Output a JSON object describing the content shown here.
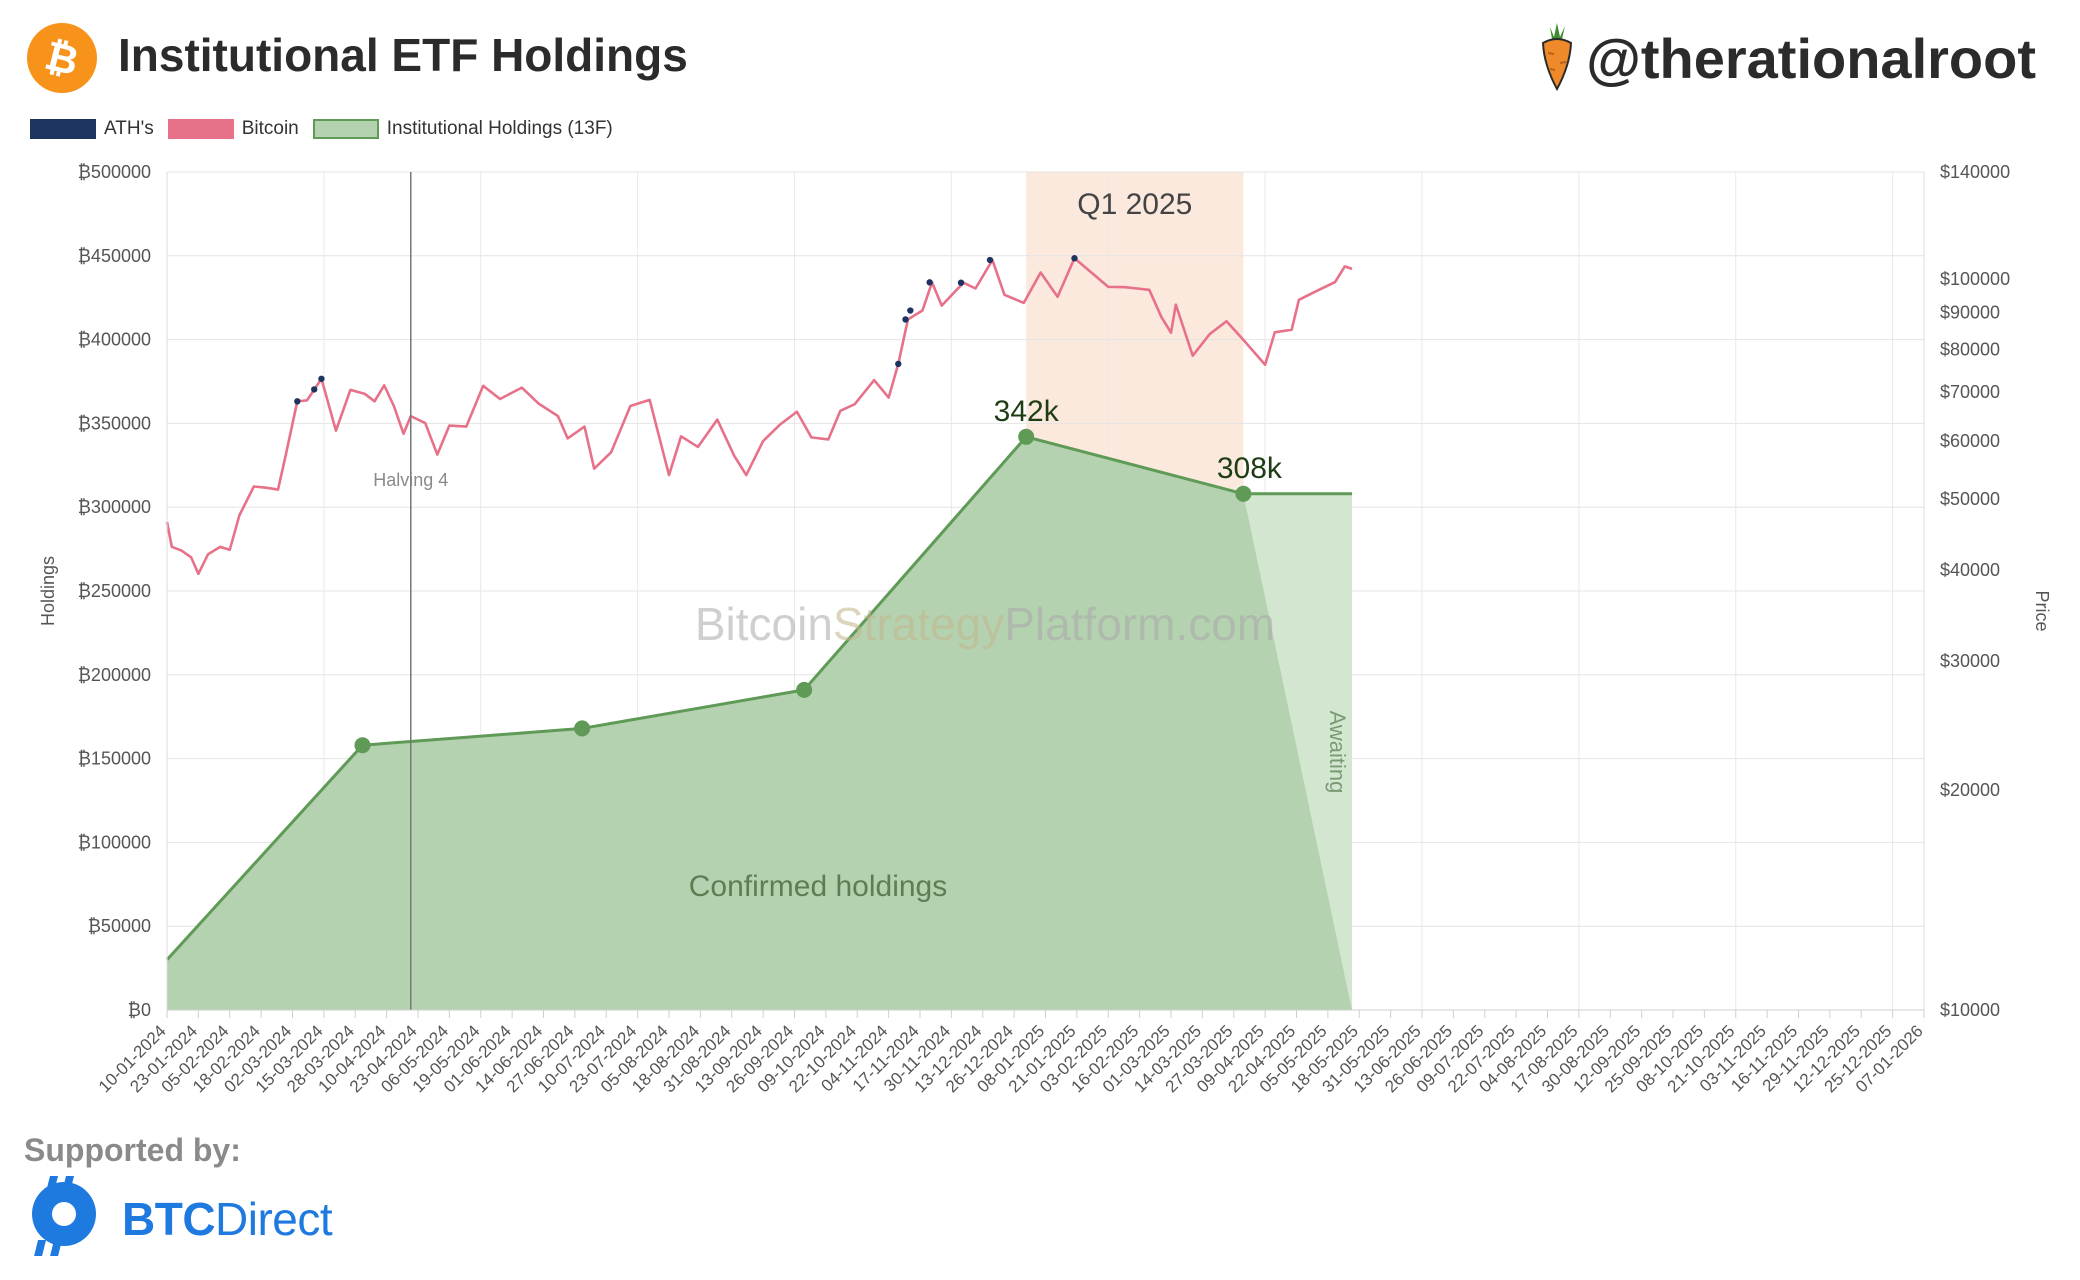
{
  "header": {
    "title": "Institutional ETF Holdings",
    "handle": "@therationalroot",
    "btc_logo_icon": "bitcoin-icon",
    "carrot_icon": "carrot-icon"
  },
  "footer": {
    "supported_label": "Supported by:",
    "sponsor_bold": "BTC",
    "sponsor_rest": "Direct",
    "sponsor_icon": "btcdirect-logo-icon"
  },
  "colors": {
    "ath": "#1d3461",
    "bitcoin": "#e8718a",
    "holdings_fill": "#b5d2b0",
    "holdings_line": "#5f9a57",
    "awaiting_fill": "#d3e6d0",
    "q1_band": "#fbe9dd",
    "orange": "#f7931a"
  },
  "chart_data": {
    "type": "line",
    "legend": [
      {
        "name": "ATH's",
        "color": "#1d3461"
      },
      {
        "name": "Bitcoin",
        "color": "#e8718a"
      },
      {
        "name": "Institutional Holdings (13F)",
        "color": "#b5d2b0",
        "border": "#5f9a57"
      }
    ],
    "legend_placement": "top-left",
    "grid": true,
    "y_left": {
      "label": "Holdings",
      "min": 0,
      "max": 500000,
      "ticks": [
        "₿0",
        "₿50000",
        "₿100000",
        "₿150000",
        "₿200000",
        "₿250000",
        "₿300000",
        "₿350000",
        "₿400000",
        "₿450000",
        "₿500000"
      ]
    },
    "y_right": {
      "label": "Price",
      "scale": "log",
      "min": 10000,
      "max": 140000,
      "ticks": [
        {
          "value": 10000,
          "label": "$10000"
        },
        {
          "value": 20000,
          "label": "$20000"
        },
        {
          "value": 30000,
          "label": "$30000"
        },
        {
          "value": 40000,
          "label": "$40000"
        },
        {
          "value": 50000,
          "label": "$50000"
        },
        {
          "value": 60000,
          "label": "$60000"
        },
        {
          "value": 70000,
          "label": "$70000"
        },
        {
          "value": 80000,
          "label": "$80000"
        },
        {
          "value": 90000,
          "label": "$90000"
        },
        {
          "value": 100000,
          "label": "$100000"
        },
        {
          "value": 140000,
          "label": "$140000"
        }
      ]
    },
    "x_range": [
      "2024-01-10",
      "2026-01-07"
    ],
    "x_ticks": [
      "10-01-2024",
      "23-01-2024",
      "05-02-2024",
      "18-02-2024",
      "02-03-2024",
      "15-03-2024",
      "28-03-2024",
      "10-04-2024",
      "23-04-2024",
      "06-05-2024",
      "19-05-2024",
      "01-06-2024",
      "14-06-2024",
      "27-06-2024",
      "10-07-2024",
      "23-07-2024",
      "05-08-2024",
      "18-08-2024",
      "31-08-2024",
      "13-09-2024",
      "26-09-2024",
      "09-10-2024",
      "22-10-2024",
      "04-11-2024",
      "17-11-2024",
      "30-11-2024",
      "13-12-2024",
      "26-12-2024",
      "08-01-2025",
      "21-01-2025",
      "03-02-2025",
      "16-02-2025",
      "01-03-2025",
      "14-03-2025",
      "27-03-2025",
      "09-04-2025",
      "22-04-2025",
      "05-05-2025",
      "18-05-2025",
      "31-05-2025",
      "13-06-2025",
      "26-06-2025",
      "09-07-2025",
      "22-07-2025",
      "04-08-2025",
      "17-08-2025",
      "30-08-2025",
      "12-09-2025",
      "25-09-2025",
      "08-10-2025",
      "21-10-2025",
      "03-11-2025",
      "16-11-2025",
      "29-11-2025",
      "12-12-2025",
      "25-12-2025",
      "07-01-2026"
    ],
    "holdings": [
      {
        "date": "2024-01-10",
        "value": 30000
      },
      {
        "date": "2024-03-31",
        "value": 158000
      },
      {
        "date": "2024-06-30",
        "value": 168000
      },
      {
        "date": "2024-09-30",
        "value": 191000
      },
      {
        "date": "2024-12-31",
        "value": 342000
      },
      {
        "date": "2025-03-31",
        "value": 308000
      },
      {
        "date": "2025-05-15",
        "value": 308000
      }
    ],
    "awaiting_to": {
      "date": "2025-05-15",
      "value": 0
    },
    "price": [
      {
        "date": "2024-01-10",
        "v": 46500
      },
      {
        "date": "2024-01-12",
        "v": 43000
      },
      {
        "date": "2024-01-16",
        "v": 42500
      },
      {
        "date": "2024-01-20",
        "v": 41600
      },
      {
        "date": "2024-01-23",
        "v": 39500
      },
      {
        "date": "2024-01-27",
        "v": 42000
      },
      {
        "date": "2024-02-01",
        "v": 43000
      },
      {
        "date": "2024-02-05",
        "v": 42600
      },
      {
        "date": "2024-02-09",
        "v": 47500
      },
      {
        "date": "2024-02-15",
        "v": 52000
      },
      {
        "date": "2024-02-20",
        "v": 51800
      },
      {
        "date": "2024-02-25",
        "v": 51500
      },
      {
        "date": "2024-02-28",
        "v": 57000
      },
      {
        "date": "2024-03-04",
        "v": 68000
      },
      {
        "date": "2024-03-08",
        "v": 68200
      },
      {
        "date": "2024-03-14",
        "v": 73000
      },
      {
        "date": "2024-03-20",
        "v": 62000
      },
      {
        "date": "2024-03-26",
        "v": 70500
      },
      {
        "date": "2024-04-01",
        "v": 69600
      },
      {
        "date": "2024-04-05",
        "v": 68000
      },
      {
        "date": "2024-04-09",
        "v": 71500
      },
      {
        "date": "2024-04-13",
        "v": 67000
      },
      {
        "date": "2024-04-17",
        "v": 61400
      },
      {
        "date": "2024-04-20",
        "v": 64900
      },
      {
        "date": "2024-04-26",
        "v": 63500
      },
      {
        "date": "2024-05-01",
        "v": 57500
      },
      {
        "date": "2024-05-06",
        "v": 63000
      },
      {
        "date": "2024-05-13",
        "v": 62800
      },
      {
        "date": "2024-05-20",
        "v": 71400
      },
      {
        "date": "2024-05-27",
        "v": 68500
      },
      {
        "date": "2024-06-05",
        "v": 71000
      },
      {
        "date": "2024-06-12",
        "v": 67500
      },
      {
        "date": "2024-06-20",
        "v": 64900
      },
      {
        "date": "2024-06-24",
        "v": 60500
      },
      {
        "date": "2024-07-01",
        "v": 62800
      },
      {
        "date": "2024-07-05",
        "v": 55000
      },
      {
        "date": "2024-07-12",
        "v": 57900
      },
      {
        "date": "2024-07-20",
        "v": 67000
      },
      {
        "date": "2024-07-28",
        "v": 68300
      },
      {
        "date": "2024-08-05",
        "v": 53900
      },
      {
        "date": "2024-08-10",
        "v": 60900
      },
      {
        "date": "2024-08-17",
        "v": 58900
      },
      {
        "date": "2024-08-25",
        "v": 64200
      },
      {
        "date": "2024-09-01",
        "v": 57300
      },
      {
        "date": "2024-09-06",
        "v": 53900
      },
      {
        "date": "2024-09-13",
        "v": 60000
      },
      {
        "date": "2024-09-20",
        "v": 63200
      },
      {
        "date": "2024-09-27",
        "v": 65800
      },
      {
        "date": "2024-10-03",
        "v": 60700
      },
      {
        "date": "2024-10-10",
        "v": 60300
      },
      {
        "date": "2024-10-15",
        "v": 66000
      },
      {
        "date": "2024-10-21",
        "v": 67400
      },
      {
        "date": "2024-10-29",
        "v": 72700
      },
      {
        "date": "2024-11-04",
        "v": 68800
      },
      {
        "date": "2024-11-08",
        "v": 76500
      },
      {
        "date": "2024-11-12",
        "v": 88000
      },
      {
        "date": "2024-11-18",
        "v": 90500
      },
      {
        "date": "2024-11-22",
        "v": 98900
      },
      {
        "date": "2024-11-26",
        "v": 91900
      },
      {
        "date": "2024-12-05",
        "v": 98800
      },
      {
        "date": "2024-12-10",
        "v": 97000
      },
      {
        "date": "2024-12-17",
        "v": 106100
      },
      {
        "date": "2024-12-22",
        "v": 95100
      },
      {
        "date": "2024-12-30",
        "v": 92700
      },
      {
        "date": "2025-01-06",
        "v": 102000
      },
      {
        "date": "2025-01-13",
        "v": 94500
      },
      {
        "date": "2025-01-20",
        "v": 106700
      },
      {
        "date": "2025-01-27",
        "v": 102000
      },
      {
        "date": "2025-02-03",
        "v": 97500
      },
      {
        "date": "2025-02-10",
        "v": 97400
      },
      {
        "date": "2025-02-20",
        "v": 96600
      },
      {
        "date": "2025-02-25",
        "v": 88700
      },
      {
        "date": "2025-03-01",
        "v": 84400
      },
      {
        "date": "2025-03-03",
        "v": 92200
      },
      {
        "date": "2025-03-10",
        "v": 78500
      },
      {
        "date": "2025-03-17",
        "v": 84000
      },
      {
        "date": "2025-03-24",
        "v": 87500
      },
      {
        "date": "2025-03-31",
        "v": 82500
      },
      {
        "date": "2025-04-06",
        "v": 78300
      },
      {
        "date": "2025-04-09",
        "v": 76300
      },
      {
        "date": "2025-04-13",
        "v": 84500
      },
      {
        "date": "2025-04-20",
        "v": 85200
      },
      {
        "date": "2025-04-23",
        "v": 93600
      },
      {
        "date": "2025-05-01",
        "v": 96500
      },
      {
        "date": "2025-05-08",
        "v": 99000
      },
      {
        "date": "2025-05-12",
        "v": 104000
      },
      {
        "date": "2025-05-15",
        "v": 103200
      }
    ],
    "ath_points": [
      {
        "date": "2024-03-04",
        "v": 68000
      },
      {
        "date": "2024-03-11",
        "v": 70600
      },
      {
        "date": "2024-03-14",
        "v": 73000
      },
      {
        "date": "2024-11-08",
        "v": 76500
      },
      {
        "date": "2024-11-11",
        "v": 88000
      },
      {
        "date": "2024-11-13",
        "v": 90500
      },
      {
        "date": "2024-11-21",
        "v": 98900
      },
      {
        "date": "2024-12-04",
        "v": 98800
      },
      {
        "date": "2024-12-16",
        "v": 106100
      },
      {
        "date": "2025-01-20",
        "v": 106700
      }
    ],
    "annotations": {
      "halving": {
        "date": "2024-04-20",
        "label": "Halving 4"
      },
      "q1_band": {
        "from": "2024-12-31",
        "to": "2025-03-31",
        "label": "Q1 2025"
      },
      "label_342k": "342k",
      "label_308k": "308k",
      "awaiting": "Awaiting",
      "confirmed": "Confirmed holdings",
      "watermark": {
        "part1": "Bitcoin",
        "part2": "Strategy",
        "part3": "Platform.com"
      }
    }
  }
}
